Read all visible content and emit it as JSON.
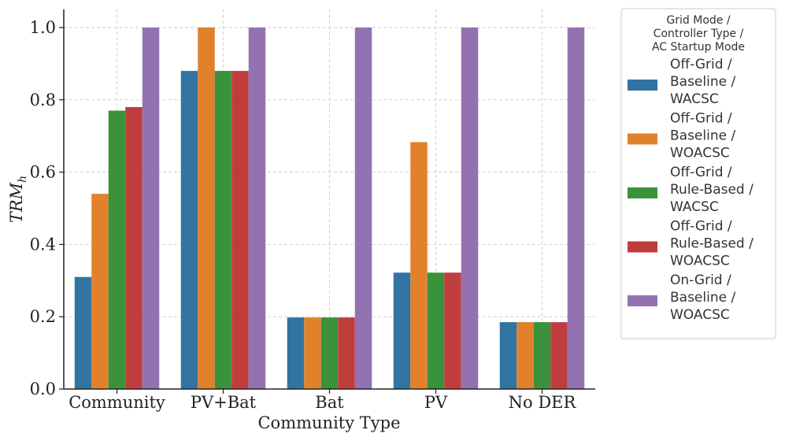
{
  "chart_data": {
    "type": "bar",
    "title": "",
    "xlabel": "Community Type",
    "ylabel_base": "TRM",
    "ylabel_sub": "h",
    "ylim": [
      0,
      1.05
    ],
    "yticks": [
      0.0,
      0.2,
      0.4,
      0.6,
      0.8,
      1.0
    ],
    "ytick_labels": [
      "0.0",
      "0.2",
      "0.4",
      "0.6",
      "0.8",
      "1.0"
    ],
    "grid": true,
    "categories": [
      "Community",
      "PV+Bat",
      "Bat",
      "PV",
      "No DER"
    ],
    "legend_title": [
      "Grid Mode /",
      "Controller Type /",
      "AC Startup Mode"
    ],
    "legend_position": "right-outside",
    "series": [
      {
        "name": "Off-Grid / Baseline / WACSC",
        "name_lines": [
          "Off-Grid /",
          "Baseline /",
          "WACSC"
        ],
        "color": "#3274a1",
        "values": [
          0.31,
          0.88,
          0.198,
          0.322,
          0.185
        ]
      },
      {
        "name": "Off-Grid / Baseline / WOACSC",
        "name_lines": [
          "Off-Grid /",
          "Baseline /",
          "WOACSC"
        ],
        "color": "#e1812c",
        "values": [
          0.54,
          1.0,
          0.198,
          0.683,
          0.185
        ]
      },
      {
        "name": "Off-Grid / Rule-Based / WACSC",
        "name_lines": [
          "Off-Grid /",
          "Rule-Based /",
          "WACSC"
        ],
        "color": "#3a923a",
        "values": [
          0.77,
          0.88,
          0.198,
          0.322,
          0.185
        ]
      },
      {
        "name": "Off-Grid / Rule-Based / WOACSC",
        "name_lines": [
          "Off-Grid /",
          "Rule-Based /",
          "WOACSC"
        ],
        "color": "#c03d3e",
        "values": [
          0.78,
          0.88,
          0.198,
          0.322,
          0.185
        ]
      },
      {
        "name": "On-Grid / Baseline / WOACSC",
        "name_lines": [
          "On-Grid /",
          "Baseline /",
          "WOACSC"
        ],
        "color": "#9372b2",
        "values": [
          1.0,
          1.0,
          1.0,
          1.0,
          1.0
        ]
      }
    ]
  }
}
